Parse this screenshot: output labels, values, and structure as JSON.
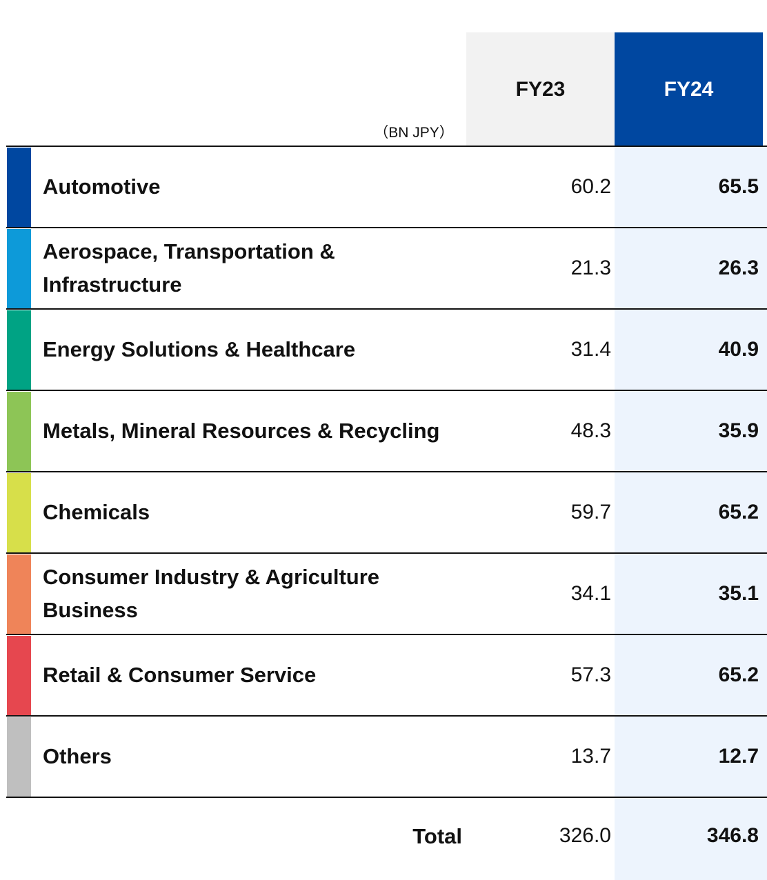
{
  "chart_data": {
    "type": "table",
    "unit": "（BN JPY）",
    "columns": [
      "FY23",
      "FY24"
    ],
    "rows": [
      {
        "label": "Automotive",
        "fy23": "60.2",
        "fy24": "65.5",
        "color": "#0047a0"
      },
      {
        "label": "Aerospace, Transportation & Infrastructure",
        "fy23": "21.3",
        "fy24": "26.3",
        "color": "#0d9ad9"
      },
      {
        "label": "Energy Solutions & Healthcare",
        "fy23": "31.4",
        "fy24": "40.9",
        "color": "#00a384"
      },
      {
        "label": "Metals, Mineral Resources & Recycling",
        "fy23": "48.3",
        "fy24": "35.9",
        "color": "#8dc556"
      },
      {
        "label": "Chemicals",
        "fy23": "59.7",
        "fy24": "65.2",
        "color": "#d7df4a"
      },
      {
        "label": "Consumer Industry & Agriculture Business",
        "fy23": "34.1",
        "fy24": "35.1",
        "color": "#ef8459"
      },
      {
        "label": "Retail & Consumer Service",
        "fy23": "57.3",
        "fy24": "65.2",
        "color": "#e6474f"
      },
      {
        "label": "Others",
        "fy23": "13.7",
        "fy24": "12.7",
        "color": "#bfbfbf"
      }
    ],
    "total": {
      "label": "Total",
      "fy23": "326.0",
      "fy24": "346.8"
    }
  }
}
